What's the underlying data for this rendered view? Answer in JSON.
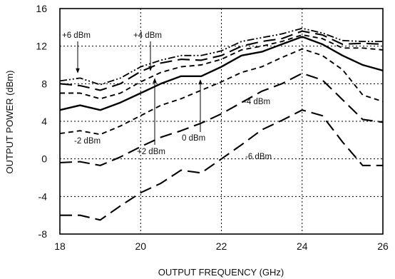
{
  "chart_data": {
    "type": "line",
    "title": "",
    "xlabel": "OUTPUT FREQUENCY (GHz)",
    "ylabel": "OUTPUT POWER (dBm)",
    "xlim": [
      18,
      26
    ],
    "ylim": [
      -8,
      16
    ],
    "xticks": [
      18,
      20,
      22,
      24,
      26
    ],
    "yticks": [
      -8,
      -4,
      0,
      4,
      8,
      12,
      16
    ],
    "grid": true,
    "series": [
      {
        "name": "+6 dBm",
        "style": "dash-dot-dot",
        "x": [
          18,
          18.5,
          19,
          19.5,
          20,
          20.5,
          21,
          21.5,
          22,
          22.5,
          23,
          23.5,
          24,
          24.5,
          25,
          25.5,
          26
        ],
        "y": [
          8.3,
          8.6,
          7.9,
          8.6,
          9.8,
          10.5,
          11.0,
          11.0,
          11.5,
          12.5,
          12.9,
          13.3,
          13.9,
          13.4,
          12.6,
          12.5,
          12.5
        ]
      },
      {
        "name": "+4 dBm",
        "style": "long-dash",
        "x": [
          18,
          18.5,
          19,
          19.5,
          20,
          20.5,
          21,
          21.5,
          22,
          22.5,
          23,
          23.5,
          24,
          24.5,
          25,
          25.5,
          26
        ],
        "y": [
          8.0,
          7.8,
          7.3,
          8.0,
          9.3,
          10.2,
          10.6,
          10.5,
          11.0,
          12.0,
          12.5,
          12.8,
          13.6,
          13.2,
          12.2,
          12.3,
          12.2
        ]
      },
      {
        "name": "+2 dBm",
        "style": "dashed",
        "x": [
          18,
          18.5,
          19,
          19.5,
          20,
          20.5,
          21,
          21.5,
          22,
          22.5,
          23,
          23.5,
          24,
          24.5,
          25,
          25.5,
          26
        ],
        "y": [
          7.0,
          7.0,
          6.4,
          7.0,
          8.2,
          9.2,
          9.8,
          10.0,
          10.6,
          11.6,
          12.0,
          12.5,
          13.2,
          12.8,
          11.8,
          11.8,
          11.6
        ]
      },
      {
        "name": "0 dBm",
        "style": "solid",
        "x": [
          18,
          18.5,
          19,
          19.5,
          20,
          20.5,
          21,
          21.5,
          22,
          22.5,
          23,
          23.5,
          24,
          24.5,
          25,
          25.5,
          26
        ],
        "y": [
          5.2,
          5.7,
          5.2,
          6.0,
          7.0,
          8.0,
          8.8,
          8.8,
          9.8,
          11.0,
          11.4,
          12.2,
          13.0,
          12.2,
          11.0,
          10.0,
          9.4
        ]
      },
      {
        "name": "-2 dBm",
        "style": "dashed",
        "x": [
          18,
          18.5,
          19,
          19.5,
          20,
          20.5,
          21,
          21.5,
          22,
          22.5,
          23,
          23.5,
          24,
          24.5,
          25,
          25.5,
          26
        ],
        "y": [
          2.7,
          3.0,
          2.6,
          3.5,
          4.6,
          5.7,
          6.4,
          7.3,
          8.2,
          9.2,
          9.8,
          10.8,
          11.7,
          11.0,
          9.5,
          6.8,
          6.1
        ]
      },
      {
        "name": "-4 dBm",
        "style": "long-dash",
        "x": [
          18,
          18.5,
          19,
          19.5,
          20,
          20.5,
          21,
          21.5,
          22,
          22.5,
          23,
          23.5,
          24,
          24.5,
          25,
          25.5,
          26
        ],
        "y": [
          -0.4,
          -0.3,
          -0.7,
          0.2,
          1.3,
          2.3,
          3.0,
          3.8,
          4.8,
          6.0,
          7.2,
          8.0,
          9.1,
          8.4,
          6.3,
          4.2,
          3.9
        ]
      },
      {
        "name": "-6 dBm",
        "style": "long-dash",
        "x": [
          18,
          18.5,
          19,
          19.5,
          20,
          20.5,
          21,
          21.5,
          22,
          22.5,
          23,
          23.5,
          24,
          24.5,
          25,
          25.5,
          26
        ],
        "y": [
          -6.0,
          -6.0,
          -6.5,
          -5.0,
          -3.6,
          -2.6,
          -1.2,
          -1.5,
          0.0,
          1.5,
          3.1,
          4.1,
          5.2,
          4.6,
          1.8,
          -0.7,
          -0.7
        ]
      }
    ],
    "annotations": [
      {
        "text": "+6 dBm"
      },
      {
        "text": "+4 dBm"
      },
      {
        "text": "+2 dBm"
      },
      {
        "text": "0 dBm"
      },
      {
        "text": "-2 dBm"
      },
      {
        "text": "-4 dBm"
      },
      {
        "text": "-6 dBm"
      }
    ]
  }
}
